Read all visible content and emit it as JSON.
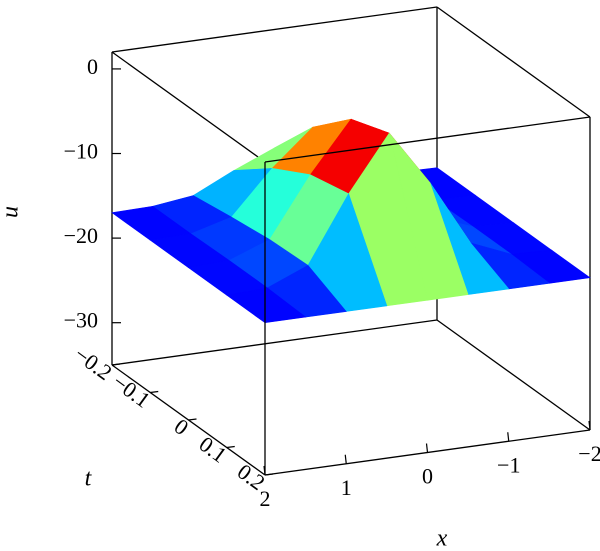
{
  "chart_data": {
    "type": "surface3d",
    "x_label": "x",
    "t_label": "t",
    "z_label": "u",
    "x": [
      2,
      1.5,
      1,
      0.5,
      0,
      -0.5,
      -1,
      -1.5,
      -2
    ],
    "t": [
      -0.2,
      -0.1,
      0,
      0.1,
      0.2
    ],
    "z": [
      [
        -17,
        -16.9,
        -16.3,
        -14,
        -12,
        -14,
        -16.3,
        -16.9,
        -17
      ],
      [
        -17,
        -16.9,
        -15.6,
        -10.5,
        -6.3,
        -10.5,
        -15.6,
        -16.9,
        -17
      ],
      [
        -17,
        -16.8,
        -15,
        -8,
        -2.1,
        -8,
        -15,
        -16.8,
        -17
      ],
      [
        -17,
        -16.8,
        -14.8,
        -7,
        -0.5,
        -7,
        -14.8,
        -16.8,
        -17
      ],
      [
        -17,
        -17,
        -17,
        -17,
        -17,
        -17,
        -17,
        -17,
        -17
      ]
    ],
    "colormap": [
      "#0000ff",
      "#00ffff",
      "#ffff00",
      "#ff0000",
      "#400000"
    ],
    "xlim": [
      2,
      -2
    ],
    "tlim": [
      -0.2,
      0.2
    ],
    "zlim": [
      -35,
      2
    ],
    "xticks": [
      2,
      1,
      0,
      {
        "value": -1,
        "label": "−1"
      },
      {
        "value": -2,
        "label": "−2"
      }
    ],
    "tticks": [
      {
        "value": -0.2,
        "label": "−0.2"
      },
      {
        "value": -0.1,
        "label": "−0.1"
      },
      0,
      0.1,
      0.2
    ],
    "zticks": [
      0,
      {
        "value": -10,
        "label": "−10"
      },
      {
        "value": -20,
        "label": "−20"
      },
      {
        "value": -30,
        "label": "−30"
      }
    ]
  }
}
